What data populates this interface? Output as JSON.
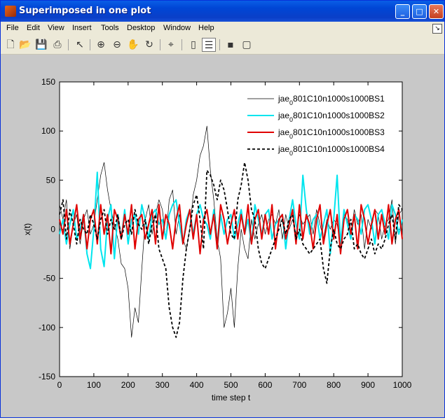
{
  "window": {
    "title": "Superimposed in one plot",
    "controls": [
      "_",
      "□",
      "✕"
    ]
  },
  "menu": {
    "items": [
      "File",
      "Edit",
      "View",
      "Insert",
      "Tools",
      "Desktop",
      "Window",
      "Help"
    ],
    "dock_glyph": "↘"
  },
  "toolbar": {
    "icons": [
      "new-file-icon",
      "open-folder-icon",
      "save-icon",
      "print-icon",
      "pointer-icon",
      "zoom-in-icon",
      "zoom-out-icon",
      "pan-hand-icon",
      "rotate-3d-icon",
      "data-cursor-icon",
      "colorbar-icon",
      "legend-icon",
      "hide-plot-tools-icon",
      "show-plot-tools-icon"
    ]
  },
  "chart_data": {
    "type": "line",
    "title": "",
    "xlabel": "time step t",
    "ylabel": "x(t)",
    "xlim": [
      0,
      1000
    ],
    "ylim": [
      -150,
      150
    ],
    "xticks": [
      0,
      100,
      200,
      300,
      400,
      500,
      600,
      700,
      800,
      900,
      1000
    ],
    "yticks": [
      -150,
      -100,
      -50,
      0,
      50,
      100,
      150
    ],
    "grid": false,
    "legend_position": "top-right",
    "series": [
      {
        "name": "jae_0801C10n1000s1000BS1",
        "legend_prefix": "jae",
        "legend_sub": "0",
        "legend_suffix": "801C10n1000s1000BS1",
        "color": "#000000",
        "style": "solid",
        "width": 0.7,
        "x": [
          0,
          10,
          20,
          30,
          40,
          50,
          60,
          70,
          80,
          90,
          100,
          110,
          120,
          130,
          140,
          150,
          160,
          170,
          180,
          190,
          200,
          210,
          220,
          230,
          240,
          250,
          260,
          270,
          280,
          290,
          300,
          310,
          320,
          330,
          340,
          350,
          360,
          370,
          380,
          390,
          400,
          410,
          420,
          430,
          440,
          450,
          460,
          470,
          480,
          490,
          500,
          510,
          520,
          530,
          540,
          550,
          560,
          570,
          580,
          590,
          600,
          610,
          620,
          630,
          640,
          650,
          660,
          670,
          680,
          690,
          700,
          710,
          720,
          730,
          740,
          750,
          760,
          770,
          780,
          790,
          800,
          810,
          820,
          830,
          840,
          850,
          860,
          870,
          880,
          890,
          900,
          910,
          920,
          930,
          940,
          950,
          960,
          970,
          980,
          990,
          1000
        ],
        "y": [
          25,
          10,
          30,
          -20,
          5,
          15,
          -15,
          10,
          20,
          -5,
          5,
          30,
          55,
          68,
          40,
          20,
          5,
          -10,
          -35,
          -40,
          -60,
          -110,
          -80,
          -95,
          -40,
          10,
          25,
          -5,
          15,
          30,
          20,
          -10,
          30,
          40,
          -5,
          15,
          -10,
          -20,
          0,
          35,
          50,
          75,
          85,
          105,
          60,
          30,
          -10,
          -30,
          -100,
          -85,
          -60,
          -100,
          -40,
          0,
          -20,
          -30,
          10,
          -10,
          5,
          15,
          -5,
          10,
          15,
          5,
          20,
          -10,
          15,
          0,
          10,
          -5,
          15,
          5,
          10,
          15,
          -5,
          20,
          5,
          -10,
          10,
          0,
          10,
          5,
          -15,
          15,
          10,
          -5,
          20,
          5,
          15,
          -20,
          10,
          0,
          20,
          15,
          -10,
          5,
          10,
          30,
          -15,
          15,
          20
        ]
      },
      {
        "name": "jae_0801C10n1000s1000BS2",
        "legend_prefix": "jae",
        "legend_sub": "0",
        "legend_suffix": "801C10n1000s1000BS2",
        "color": "#00e5ee",
        "style": "solid",
        "width": 2,
        "x": [
          0,
          10,
          20,
          30,
          40,
          50,
          60,
          70,
          80,
          90,
          100,
          110,
          120,
          130,
          140,
          150,
          160,
          170,
          180,
          190,
          200,
          210,
          220,
          230,
          240,
          250,
          260,
          270,
          280,
          290,
          300,
          310,
          320,
          330,
          340,
          350,
          360,
          370,
          380,
          390,
          400,
          410,
          420,
          430,
          440,
          450,
          460,
          470,
          480,
          490,
          500,
          510,
          520,
          530,
          540,
          550,
          560,
          570,
          580,
          590,
          600,
          610,
          620,
          630,
          640,
          650,
          660,
          670,
          680,
          690,
          700,
          710,
          720,
          730,
          740,
          750,
          760,
          770,
          780,
          790,
          800,
          810,
          820,
          830,
          840,
          850,
          860,
          870,
          880,
          890,
          900,
          910,
          920,
          930,
          940,
          950,
          960,
          970,
          980,
          990,
          1000
        ],
        "y": [
          -5,
          10,
          -15,
          5,
          20,
          -10,
          0,
          15,
          -25,
          -40,
          0,
          58,
          -20,
          -38,
          10,
          25,
          -30,
          15,
          -10,
          20,
          -15,
          10,
          15,
          -5,
          25,
          10,
          -10,
          15,
          20,
          5,
          10,
          -10,
          15,
          25,
          30,
          5,
          -15,
          10,
          20,
          -5,
          15,
          25,
          10,
          5,
          -10,
          20,
          -20,
          15,
          -5,
          10,
          15,
          -10,
          5,
          20,
          -5,
          10,
          -15,
          25,
          10,
          -5,
          15,
          20,
          -10,
          5,
          10,
          15,
          -20,
          10,
          30,
          5,
          -10,
          55,
          20,
          -5,
          10,
          15,
          -10,
          5,
          20,
          -25,
          10,
          55,
          -15,
          20,
          5,
          -10,
          15,
          10,
          -5,
          20,
          25,
          10,
          -15,
          15,
          20,
          5,
          -10,
          25,
          15,
          -5,
          10
        ]
      },
      {
        "name": "jae_0801C10n1000s1000BS3",
        "legend_prefix": "jae",
        "legend_sub": "0",
        "legend_suffix": "801C10n1000s1000BS3",
        "color": "#e00000",
        "style": "solid",
        "width": 2,
        "x": [
          0,
          10,
          20,
          30,
          40,
          50,
          60,
          70,
          80,
          90,
          100,
          110,
          120,
          130,
          140,
          150,
          160,
          170,
          180,
          190,
          200,
          210,
          220,
          230,
          240,
          250,
          260,
          270,
          280,
          290,
          300,
          310,
          320,
          330,
          340,
          350,
          360,
          370,
          380,
          390,
          400,
          410,
          420,
          430,
          440,
          450,
          460,
          470,
          480,
          490,
          500,
          510,
          520,
          530,
          540,
          550,
          560,
          570,
          580,
          590,
          600,
          610,
          620,
          630,
          640,
          650,
          660,
          670,
          680,
          690,
          700,
          710,
          720,
          730,
          740,
          750,
          760,
          770,
          780,
          790,
          800,
          810,
          820,
          830,
          840,
          850,
          860,
          870,
          880,
          890,
          900,
          910,
          920,
          930,
          940,
          950,
          960,
          970,
          980,
          990,
          1000
        ],
        "y": [
          10,
          -5,
          20,
          -15,
          5,
          25,
          -10,
          15,
          -20,
          10,
          20,
          -15,
          25,
          -5,
          15,
          -25,
          20,
          10,
          -10,
          15,
          -5,
          25,
          -20,
          10,
          15,
          -10,
          5,
          20,
          -15,
          25,
          -10,
          15,
          5,
          -20,
          10,
          25,
          -15,
          5,
          20,
          -10,
          15,
          -25,
          10,
          20,
          -5,
          15,
          -20,
          25,
          10,
          -15,
          5,
          20,
          -10,
          15,
          -5,
          25,
          -15,
          10,
          20,
          -10,
          15,
          -5,
          25,
          -20,
          10,
          15,
          -10,
          5,
          20,
          -15,
          25,
          -10,
          15,
          5,
          -20,
          10,
          25,
          -15,
          5,
          20,
          -10,
          15,
          -25,
          10,
          20,
          -5,
          15,
          -20,
          25,
          10,
          -15,
          5,
          20,
          -10,
          15,
          -5,
          25,
          -15,
          10,
          20,
          -10
        ]
      },
      {
        "name": "jae_0801C10n1000s1000BS4",
        "legend_prefix": "jae",
        "legend_sub": "0",
        "legend_suffix": "801C10n1000s1000BS4",
        "color": "#000000",
        "style": "dashed",
        "width": 1.8,
        "x": [
          0,
          10,
          20,
          30,
          40,
          50,
          60,
          70,
          80,
          90,
          100,
          110,
          120,
          130,
          140,
          150,
          160,
          170,
          180,
          190,
          200,
          210,
          220,
          230,
          240,
          250,
          260,
          270,
          280,
          290,
          300,
          310,
          320,
          330,
          340,
          350,
          360,
          370,
          380,
          390,
          400,
          410,
          420,
          430,
          440,
          450,
          460,
          470,
          480,
          490,
          500,
          510,
          520,
          530,
          540,
          550,
          560,
          570,
          580,
          590,
          600,
          610,
          620,
          630,
          640,
          650,
          660,
          670,
          680,
          690,
          700,
          710,
          720,
          730,
          740,
          750,
          760,
          770,
          780,
          790,
          800,
          810,
          820,
          830,
          840,
          850,
          860,
          870,
          880,
          890,
          900,
          910,
          920,
          930,
          940,
          950,
          960,
          970,
          980,
          990,
          1000
        ],
        "y": [
          15,
          30,
          -10,
          20,
          5,
          -15,
          10,
          0,
          -5,
          15,
          5,
          -10,
          10,
          20,
          -5,
          10,
          0,
          15,
          -10,
          5,
          10,
          -5,
          20,
          5,
          0,
          10,
          -15,
          5,
          15,
          -20,
          -30,
          -40,
          -80,
          -100,
          -110,
          -95,
          -50,
          -20,
          0,
          25,
          35,
          10,
          -20,
          60,
          55,
          45,
          30,
          50,
          40,
          20,
          -5,
          -10,
          30,
          45,
          68,
          50,
          20,
          10,
          -20,
          -35,
          -40,
          -30,
          -20,
          -10,
          0,
          10,
          -5,
          10,
          15,
          -10,
          0,
          -15,
          -20,
          -25,
          -20,
          -15,
          -10,
          -40,
          -55,
          -20,
          0,
          -15,
          -20,
          -10,
          -5,
          10,
          -20,
          -15,
          -25,
          -30,
          -20,
          -10,
          -25,
          -15,
          -20,
          -10,
          5,
          15,
          -10,
          25,
          20
        ]
      }
    ]
  }
}
